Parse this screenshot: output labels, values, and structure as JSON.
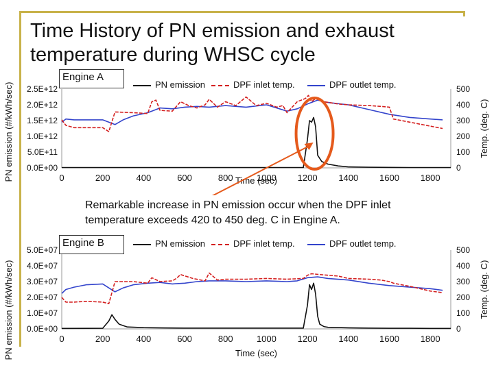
{
  "title": "Time History of PN emission and exhaust temperature during WHSC cycle",
  "annotation": "Remarkable increase in PN emission occur when the DPF inlet temperature exceeds 420 to 450 deg. C in Engine A.",
  "colors": {
    "pn": "#111111",
    "inlet": "#d42020",
    "outlet": "#3344cc",
    "highlight": "#e55a1c",
    "frame": "#c8b24a"
  },
  "chart_data": [
    {
      "type": "line",
      "panel_label": "Engine A",
      "xlabel": "Time (sec)",
      "ylabel": "PN emission (#/kWh/sec)",
      "y2label": "Temp. (deg. C)",
      "xlim": [
        0,
        1900
      ],
      "ylim": [
        0,
        2500000000000.0
      ],
      "y2lim": [
        0,
        500
      ],
      "x_ticks": [
        "0",
        "200",
        "400",
        "600",
        "800",
        "1000",
        "1200",
        "1400",
        "1600",
        "1800"
      ],
      "y_ticks": [
        "0.0E+00",
        "5.0E+11",
        "1.0E+12",
        "1.5E+12",
        "2.0E+12",
        "2.5E+12"
      ],
      "y2_ticks": [
        "0",
        "100",
        "200",
        "300",
        "400",
        "500"
      ],
      "series": [
        {
          "name": "PN emission",
          "axis": "left",
          "style": "solid",
          "x": [
            0,
            1180,
            1200,
            1210,
            1220,
            1230,
            1240,
            1250,
            1270,
            1300,
            1350,
            1400,
            1500,
            1600,
            1700,
            1800,
            1900
          ],
          "y": [
            10000000000.0,
            10000000000.0,
            900000000000.0,
            1500000000000.0,
            1450000000000.0,
            1600000000000.0,
            1300000000000.0,
            400000000000.0,
            200000000000.0,
            120000000000.0,
            60000000000.0,
            30000000000.0,
            20000000000.0,
            15000000000.0,
            10000000000.0,
            10000000000.0,
            10000000000.0
          ]
        },
        {
          "name": "DPF inlet temp.",
          "axis": "right",
          "style": "dashed",
          "x": [
            0,
            20,
            60,
            120,
            200,
            230,
            260,
            350,
            420,
            440,
            460,
            480,
            540,
            560,
            580,
            620,
            660,
            700,
            720,
            760,
            800,
            850,
            900,
            950,
            1000,
            1050,
            1080,
            1100,
            1150,
            1190,
            1205,
            1220,
            1240,
            1280,
            1350,
            1400,
            1500,
            1560,
            1600,
            1620,
            1700,
            1800,
            1860
          ],
          "y": [
            305,
            270,
            255,
            255,
            255,
            230,
            355,
            350,
            345,
            420,
            430,
            365,
            360,
            390,
            420,
            395,
            380,
            400,
            435,
            385,
            420,
            395,
            450,
            395,
            410,
            385,
            395,
            350,
            420,
            440,
            460,
            420,
            440,
            420,
            405,
            400,
            395,
            390,
            385,
            310,
            290,
            265,
            250
          ]
        },
        {
          "name": "DPF outlet temp.",
          "axis": "right",
          "style": "solid",
          "x": [
            0,
            20,
            60,
            120,
            200,
            260,
            300,
            350,
            420,
            480,
            540,
            600,
            660,
            720,
            800,
            900,
            1000,
            1100,
            1150,
            1200,
            1250,
            1300,
            1400,
            1500,
            1600,
            1700,
            1800,
            1860
          ],
          "y": [
            290,
            310,
            305,
            305,
            305,
            275,
            305,
            330,
            350,
            380,
            375,
            385,
            390,
            385,
            395,
            385,
            400,
            360,
            375,
            405,
            430,
            415,
            400,
            370,
            340,
            320,
            310,
            305
          ]
        }
      ]
    },
    {
      "type": "line",
      "panel_label": "Engine B",
      "xlabel": "Time (sec)",
      "ylabel": "PN emission (#/kWh/sec)",
      "y2label": "Temp. (deg. C)",
      "xlim": [
        0,
        1900
      ],
      "ylim": [
        0,
        50000000.0
      ],
      "y2lim": [
        0,
        500
      ],
      "x_ticks": [
        "0",
        "200",
        "400",
        "600",
        "800",
        "1000",
        "1200",
        "1400",
        "1600",
        "1800"
      ],
      "y_ticks": [
        "0.0E+00",
        "1.0E+07",
        "2.0E+07",
        "3.0E+07",
        "4.0E+07",
        "5.0E+07"
      ],
      "y2_ticks": [
        "0",
        "100",
        "200",
        "300",
        "400",
        "500"
      ],
      "series": [
        {
          "name": "PN emission",
          "axis": "left",
          "style": "solid",
          "x": [
            0,
            200,
            230,
            245,
            260,
            280,
            320,
            400,
            500,
            600,
            1180,
            1200,
            1210,
            1220,
            1230,
            1240,
            1250,
            1260,
            1280,
            1300,
            1400,
            1500,
            1600,
            1700,
            1800,
            1900
          ],
          "y": [
            300000.0,
            400000.0,
            5000000.0,
            9000000.0,
            6000000.0,
            3000000.0,
            1200000.0,
            800000.0,
            600000.0,
            500000.0,
            500000.0,
            15000000.0,
            28000000.0,
            25000000.0,
            29000000.0,
            22000000.0,
            8000000.0,
            3000000.0,
            1500000.0,
            1000000.0,
            700000.0,
            500000.0,
            400000.0,
            400000.0,
            300000.0,
            300000.0
          ]
        },
        {
          "name": "DPF inlet temp.",
          "axis": "right",
          "style": "dashed",
          "x": [
            0,
            20,
            60,
            120,
            200,
            230,
            260,
            350,
            420,
            440,
            480,
            540,
            560,
            580,
            640,
            700,
            720,
            760,
            800,
            900,
            1000,
            1100,
            1180,
            1200,
            1220,
            1260,
            1350,
            1400,
            1500,
            1560,
            1600,
            1620,
            1700,
            1800,
            1860
          ],
          "y": [
            200,
            170,
            170,
            175,
            170,
            160,
            300,
            300,
            290,
            325,
            300,
            305,
            320,
            345,
            320,
            305,
            355,
            310,
            315,
            315,
            320,
            315,
            320,
            340,
            350,
            345,
            335,
            320,
            315,
            310,
            300,
            290,
            270,
            240,
            230
          ]
        },
        {
          "name": "DPF outlet temp.",
          "axis": "right",
          "style": "solid",
          "x": [
            0,
            20,
            60,
            120,
            200,
            260,
            300,
            350,
            420,
            480,
            540,
            600,
            660,
            720,
            800,
            900,
            1000,
            1100,
            1150,
            1200,
            1250,
            1300,
            1400,
            1500,
            1600,
            1700,
            1800,
            1860
          ],
          "y": [
            225,
            250,
            265,
            280,
            285,
            235,
            260,
            280,
            290,
            295,
            285,
            290,
            300,
            305,
            305,
            300,
            305,
            300,
            305,
            325,
            330,
            320,
            310,
            290,
            275,
            265,
            255,
            245
          ]
        }
      ]
    }
  ]
}
